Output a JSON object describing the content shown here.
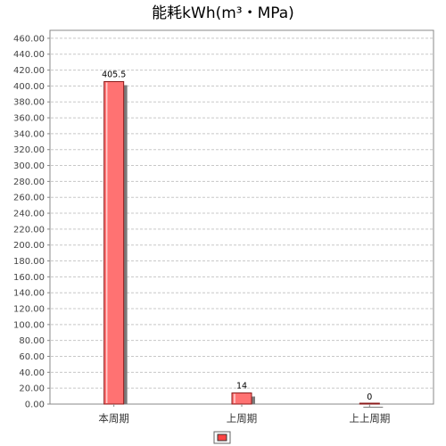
{
  "chart_data": {
    "type": "bar",
    "title": "能耗kWh(m³・MPa)",
    "xlabel": "",
    "ylabel": "",
    "categories": [
      "本周期",
      "上周期",
      "上上周期"
    ],
    "values": [
      405.5,
      14,
      0
    ],
    "value_labels": [
      "405.5",
      "14",
      "0"
    ],
    "ylim": [
      0,
      470
    ],
    "y_ticks": [
      "0.00",
      "20.00",
      "40.00",
      "60.00",
      "80.00",
      "100.00",
      "120.00",
      "140.00",
      "160.00",
      "180.00",
      "200.00",
      "220.00",
      "240.00",
      "260.00",
      "280.00",
      "300.00",
      "320.00",
      "340.00",
      "360.00",
      "380.00",
      "400.00",
      "420.00",
      "440.00",
      "460.00"
    ],
    "grid": true,
    "legend_placement": "bottom-center",
    "colors": {
      "bar_fill": "#ff7272",
      "bar_stroke": "#8b1a1a",
      "bar_shadow": "#7a7a7a",
      "gridline": "#c8c8c8",
      "axis": "#888888",
      "legend_swatch": "#ff4444"
    }
  }
}
